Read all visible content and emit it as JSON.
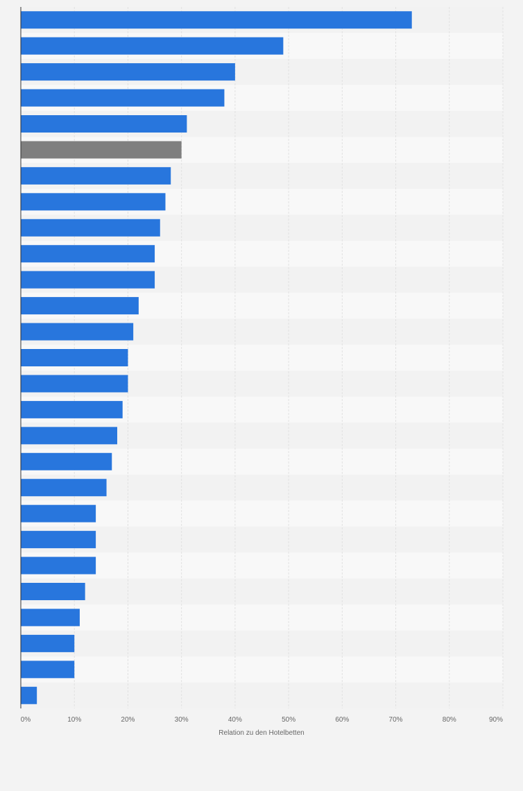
{
  "chart_data": {
    "type": "bar",
    "orientation": "horizontal",
    "xlabel": "Relation zu den Hotelbetten",
    "xlim": [
      0,
      90
    ],
    "x_ticks": [
      "0%",
      "10%",
      "20%",
      "30%",
      "40%",
      "50%",
      "60%",
      "70%",
      "80%",
      "90%"
    ],
    "grid": true,
    "values": [
      73,
      49,
      40,
      38,
      31,
      30,
      28,
      27,
      26,
      25,
      25,
      22,
      21,
      20,
      20,
      19,
      18,
      17,
      16,
      14,
      14,
      14,
      12,
      11,
      10,
      10,
      3
    ],
    "highlight_index": 5,
    "colors": {
      "bar": "#2876dd",
      "highlight": "#7f7f7f",
      "band_light": "#f8f8f8",
      "band_dark": "#f2f2f2",
      "grid": "#e1e1e1",
      "axis": "#333333"
    }
  }
}
